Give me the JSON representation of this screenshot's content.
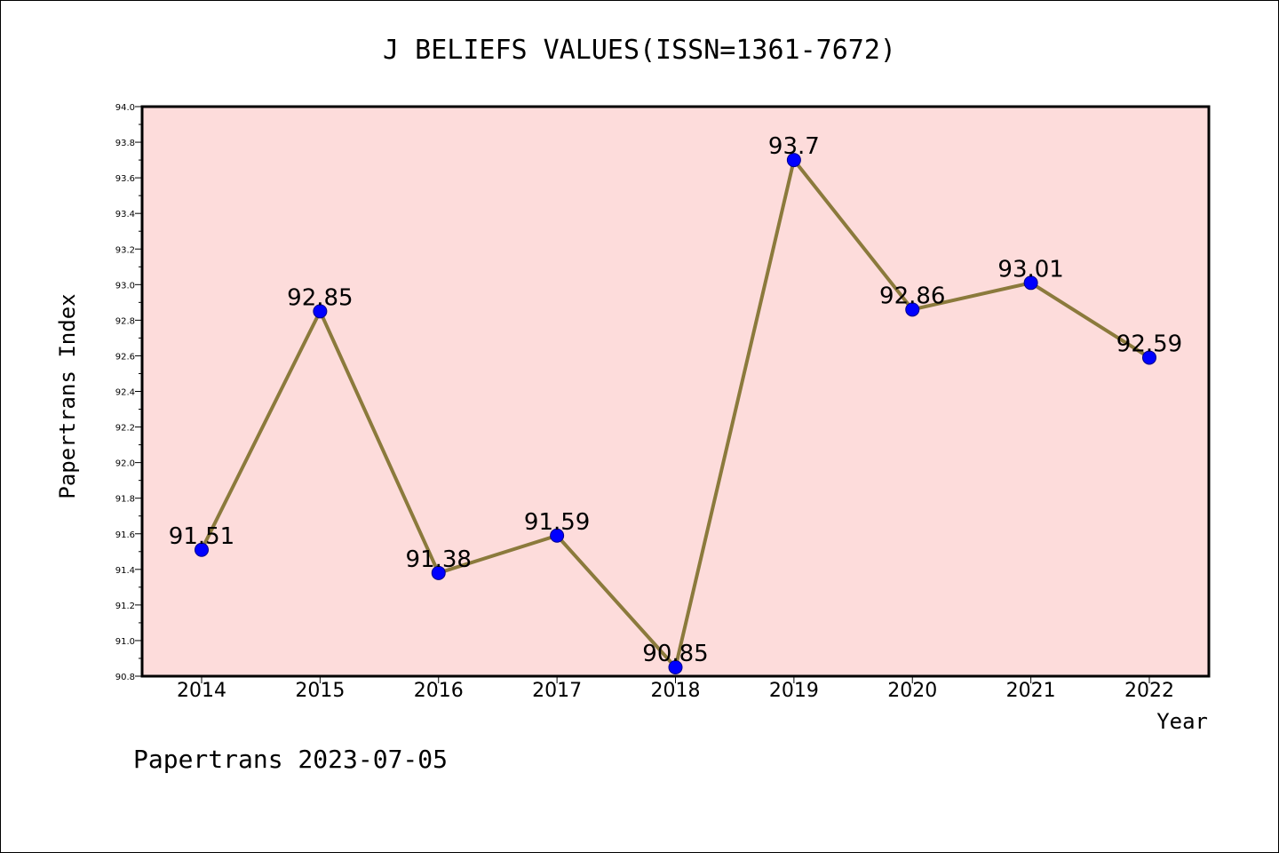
{
  "chart_data": {
    "type": "line",
    "title": "J BELIEFS VALUES(ISSN=1361-7672)",
    "xlabel": "Year",
    "ylabel": "Papertrans Index",
    "categories": [
      "2014",
      "2015",
      "2016",
      "2017",
      "2018",
      "2019",
      "2020",
      "2021",
      "2022"
    ],
    "values": [
      91.51,
      92.85,
      91.38,
      91.59,
      90.85,
      93.7,
      92.86,
      93.01,
      92.59
    ],
    "data_labels": [
      "91.51",
      "92.85",
      "91.38",
      "91.59",
      "90.85",
      "93.7",
      "92.86",
      "93.01",
      "92.59"
    ],
    "ylim": [
      90.8,
      94.0
    ],
    "yticks": [
      "90.8",
      "91.0",
      "91.2",
      "91.4",
      "91.6",
      "91.8",
      "92.0",
      "92.2",
      "92.4",
      "92.6",
      "92.8",
      "93.0",
      "93.2",
      "93.4",
      "93.6",
      "93.8",
      "94.0"
    ],
    "grid": false,
    "colors": {
      "plot_background": "#fddcdb",
      "line": "#8b7a3c",
      "marker": "#0000ff"
    }
  },
  "footer": "Papertrans 2023-07-05"
}
